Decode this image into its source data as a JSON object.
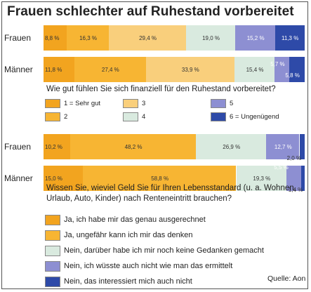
{
  "title": "Frauen schlechter auf Ruhestand vorbereitet",
  "source": "Quelle: Aon",
  "colors": [
    "#f2a41f",
    "#f7b533",
    "#f9cf7c",
    "#d9eadf",
    "#8d8fd2",
    "#2e4aa8"
  ],
  "chart_data": [
    {
      "type": "bar",
      "orientation": "horizontal",
      "stacked": true,
      "question": "Wie gut fühlen Sie sich finanziell für den Ruhestand vorbereitet?",
      "categories": [
        "Frauen",
        "Männer"
      ],
      "series": [
        {
          "name": "1 = Sehr gut",
          "values": [
            8.8,
            11.8
          ],
          "labels": [
            "8,8 %",
            "11,8 %"
          ]
        },
        {
          "name": "2",
          "values": [
            16.3,
            27.4
          ],
          "labels": [
            "16,3 %",
            "27,4 %"
          ]
        },
        {
          "name": "3",
          "values": [
            29.4,
            33.9
          ],
          "labels": [
            "29,4 %",
            "33,9 %"
          ]
        },
        {
          "name": "4",
          "values": [
            19.0,
            15.4
          ],
          "labels": [
            "19,0 %",
            "15,4 %"
          ]
        },
        {
          "name": "5",
          "values": [
            15.2,
            5.7
          ],
          "labels": [
            "15,2 %",
            "5,7 %"
          ]
        },
        {
          "name": "6 = Ungenügend",
          "values": [
            11.3,
            5.8
          ],
          "labels": [
            "11,3 %",
            "5,8 %"
          ]
        }
      ]
    },
    {
      "type": "bar",
      "orientation": "horizontal",
      "stacked": true,
      "question": "Wissen Sie, wieviel Geld Sie für Ihren Lebensstandard (u. a. Wohnen, Urlaub, Auto, Kinder) nach Renteneintritt brauchen?",
      "categories": [
        "Frauen",
        "Männer"
      ],
      "series": [
        {
          "name": "Ja, ich habe mir das genau ausgerechnet",
          "values": [
            10.2,
            15.0
          ],
          "labels": [
            "10,2 %",
            "15,0 %"
          ]
        },
        {
          "name": "Ja, ungefähr kann ich mir das denken",
          "values": [
            48.2,
            58.8
          ],
          "labels": [
            "48,2 %",
            "58,8 %"
          ]
        },
        {
          "name": "Nein, darüber habe ich mir noch keine Gedanken gemacht",
          "values": [
            26.9,
            19.3
          ],
          "labels": [
            "26,9 %",
            "19,3 %"
          ]
        },
        {
          "name": "Nein, ich wüsste auch nicht wie man das ermittelt",
          "values": [
            12.7,
            5.5
          ],
          "labels": [
            "12,7 %",
            "5,5 %"
          ]
        },
        {
          "name": "Nein, das interessiert mich auch nicht",
          "values": [
            2.0,
            1.4
          ],
          "labels": [
            "2,0 %",
            "1,4 %"
          ]
        }
      ]
    }
  ]
}
